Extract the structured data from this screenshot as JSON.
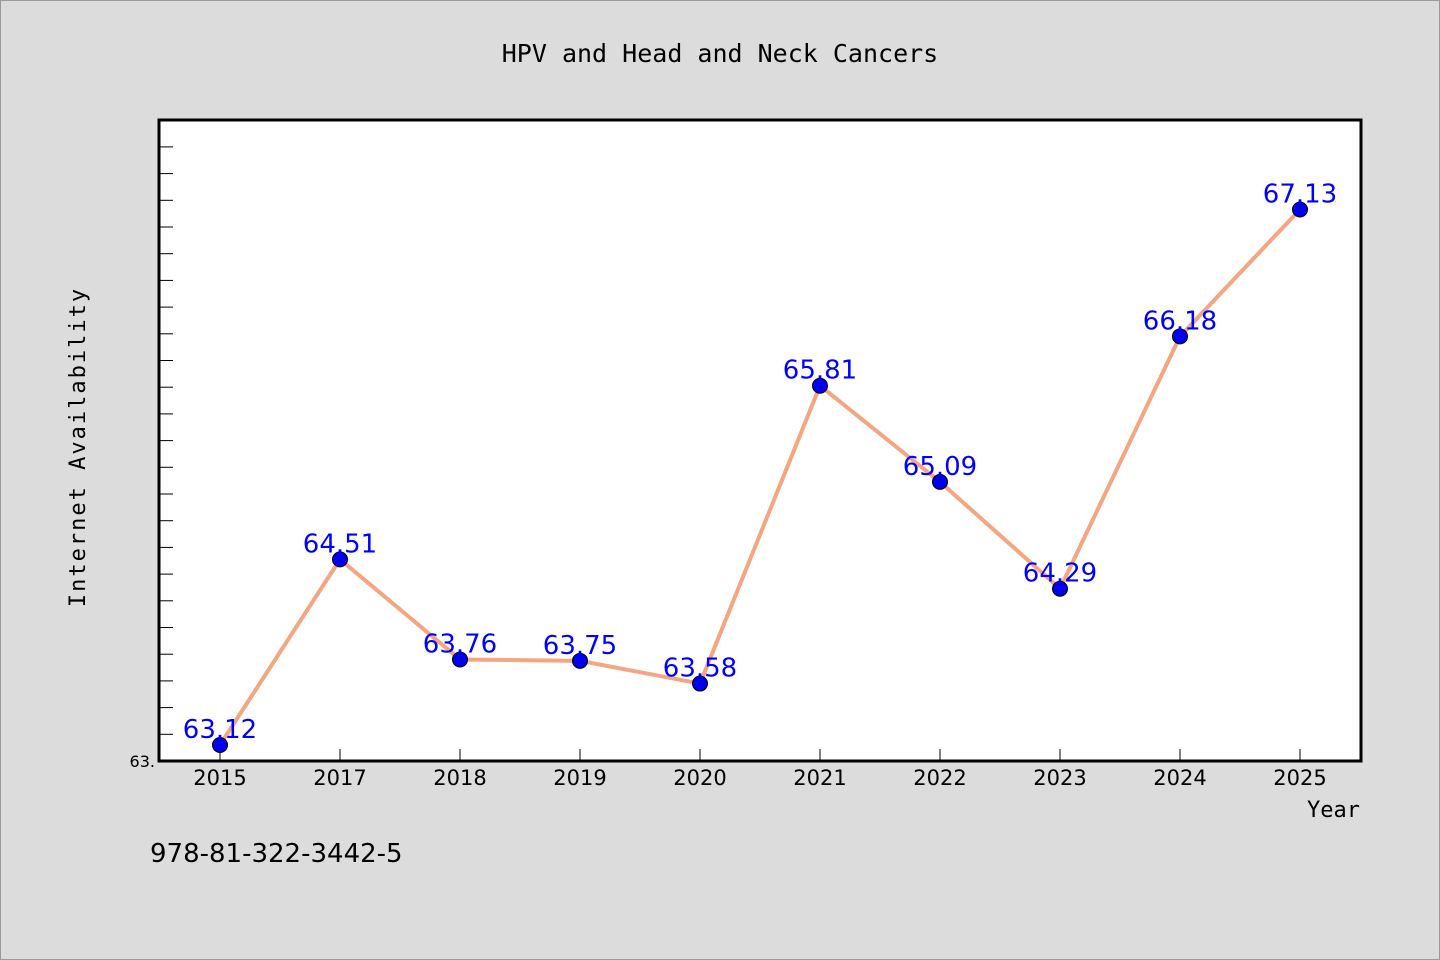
{
  "chart_data": {
    "type": "line",
    "title": "HPV and Head and Neck Cancers",
    "xlabel": "Year",
    "ylabel": "Internet Availability",
    "categories": [
      "2015",
      "2017",
      "2018",
      "2019",
      "2020",
      "2021",
      "2022",
      "2023",
      "2024",
      "2025"
    ],
    "series": [
      {
        "values": [
          63.12,
          64.51,
          63.76,
          63.75,
          63.58,
          65.81,
          65.09,
          64.29,
          66.18,
          67.13
        ],
        "labels": [
          "63.12",
          "64.51",
          "63.76",
          "63.75",
          "63.58",
          "65.81",
          "65.09",
          "64.29",
          "66.18",
          "67.13"
        ],
        "line_color": "#f4a582",
        "marker_color": "#0000ee",
        "label_color": "#0000ff"
      }
    ],
    "ylim": [
      63.0,
      67.8
    ],
    "y_tick_label": "63.",
    "grid": false,
    "legend": "none"
  },
  "footer_text": "978-81-322-3442-5",
  "colors": {
    "background": "#dcdcdc",
    "plot_background": "#ffffff",
    "axis": "#000000"
  }
}
